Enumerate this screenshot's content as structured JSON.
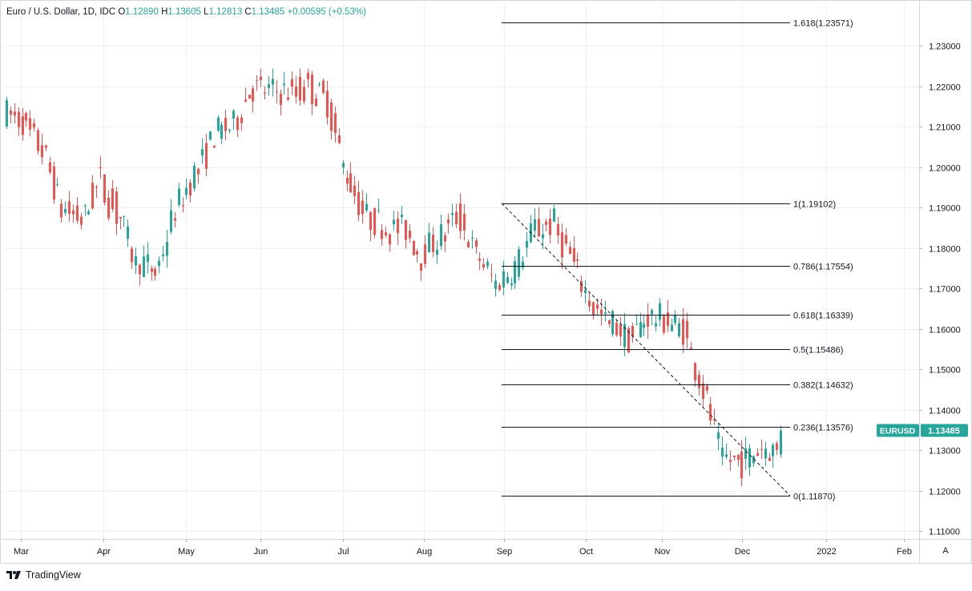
{
  "header": {
    "symbol": "Euro / U.S. Dollar, 1D, IDC",
    "open_label": "O",
    "open": "1.12890",
    "high_label": "H",
    "high": "1.13605",
    "low_label": "L",
    "low": "1.12813",
    "close_label": "C",
    "close": "1.13485",
    "change": "+0.00595 (+0.53%)"
  },
  "footer": {
    "brand": "TradingView"
  },
  "scale_button": "A",
  "colors": {
    "up": "#26a69a",
    "down": "#ef5350",
    "grid": "#eef0f3",
    "axis_text": "#131722",
    "price_tag": "#26a69a"
  },
  "chart_data": {
    "type": "candlestick",
    "symbol": "EURUSD",
    "last_price": "1.13485",
    "ylim": [
      1.105,
      1.2395
    ],
    "y_ticks": [
      "1.11000",
      "1.12000",
      "1.13000",
      "1.14000",
      "1.15000",
      "1.16000",
      "1.17000",
      "1.18000",
      "1.19000",
      "1.20000",
      "1.21000",
      "1.22000",
      "1.23000"
    ],
    "x_ticks": [
      "Mar",
      "Apr",
      "May",
      "Jun",
      "Jul",
      "Aug",
      "Sep",
      "Oct",
      "Nov",
      "Dec",
      "2022",
      "Feb"
    ],
    "fib_levels": [
      {
        "level": "1.618",
        "value": 1.23571,
        "label": "1.618(1.23571)"
      },
      {
        "level": "1",
        "value": 1.19102,
        "label": "1(1.19102)"
      },
      {
        "level": "0.786",
        "value": 1.17554,
        "label": "0.786(1.17554)"
      },
      {
        "level": "0.618",
        "value": 1.16339,
        "label": "0.618(1.16339)"
      },
      {
        "level": "0.5",
        "value": 1.15486,
        "label": "0.5(1.15486)"
      },
      {
        "level": "0.382",
        "value": 1.14632,
        "label": "0.382(1.14632)"
      },
      {
        "level": "0.236",
        "value": 1.13576,
        "label": "0.236(1.13576)"
      },
      {
        "level": "0",
        "value": 1.1187,
        "label": "0(1.11870)"
      }
    ],
    "trend_line": {
      "from": [
        1.19102
      ],
      "to": [
        1.1187
      ]
    },
    "close_path": [
      [
        1.213,
        1.218
      ],
      [
        1.211,
        1.207
      ],
      [
        1.205,
        1.197
      ],
      [
        1.19,
        1.183
      ],
      [
        1.187,
        1.192
      ],
      [
        1.198,
        1.186
      ],
      [
        1.19,
        1.178
      ],
      [
        1.176,
        1.171
      ],
      [
        1.172,
        1.186
      ],
      [
        1.188,
        1.195
      ],
      [
        1.197,
        1.204
      ],
      [
        1.208,
        1.202
      ],
      [
        1.21,
        1.218
      ],
      [
        1.22,
        1.212
      ],
      [
        1.219,
        1.224
      ],
      [
        1.219,
        1.212
      ],
      [
        1.221,
        1.216
      ],
      [
        1.218,
        1.21
      ],
      [
        1.199,
        1.19
      ],
      [
        1.188,
        1.192
      ],
      [
        1.186,
        1.18
      ],
      [
        1.186,
        1.182
      ],
      [
        1.178,
        1.179
      ],
      [
        1.182,
        1.188
      ],
      [
        1.189,
        1.182
      ],
      [
        1.178,
        1.172
      ],
      [
        1.17,
        1.177
      ],
      [
        1.174,
        1.18
      ],
      [
        1.184,
        1.189
      ],
      [
        1.186,
        1.182
      ],
      [
        1.178,
        1.172
      ],
      [
        1.168,
        1.158
      ],
      [
        1.162,
        1.155
      ],
      [
        1.157,
        1.165
      ],
      [
        1.163,
        1.158
      ],
      [
        1.162,
        1.167
      ],
      [
        1.16,
        1.152
      ],
      [
        1.146,
        1.132
      ],
      [
        1.128,
        1.122
      ],
      [
        1.127,
        1.132
      ],
      [
        1.131,
        1.126
      ],
      [
        1.129,
        1.135
      ]
    ]
  }
}
